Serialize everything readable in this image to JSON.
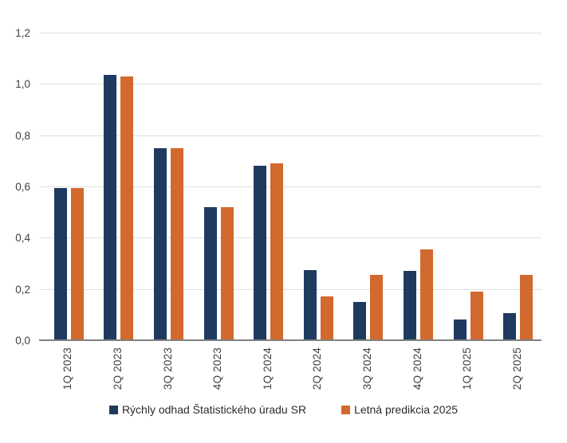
{
  "chart_data": {
    "type": "bar",
    "title": "",
    "xlabel": "",
    "ylabel": "",
    "categories": [
      "1Q 2023",
      "2Q 2023",
      "3Q 2023",
      "4Q 2023",
      "1Q 2024",
      "2Q 2024",
      "3Q 2024",
      "4Q 2024",
      "1Q 2025",
      "2Q 2025"
    ],
    "series": [
      {
        "name": "Rýchly odhad Štatistického úradu SR",
        "color": "#1f3a5f",
        "values": [
          0.595,
          1.035,
          0.75,
          0.52,
          0.68,
          0.275,
          0.15,
          0.27,
          0.08,
          0.105
        ]
      },
      {
        "name": "Letná predikcia 2025",
        "color": "#d2692e",
        "values": [
          0.595,
          1.03,
          0.75,
          0.52,
          0.69,
          0.17,
          0.255,
          0.355,
          0.19,
          0.255
        ]
      }
    ],
    "ylim": [
      0,
      1.2
    ],
    "ytick_step": 0.2,
    "ytick_labels": [
      "0,0",
      "0,2",
      "0,4",
      "0,6",
      "0,8",
      "1,0",
      "1,2"
    ],
    "decimal_separator": ",",
    "grid": true,
    "legend_position": "bottom",
    "gridline_color": "#e0e0e0",
    "axis_line_color": "#808080",
    "tick_label_color": "#404040"
  }
}
